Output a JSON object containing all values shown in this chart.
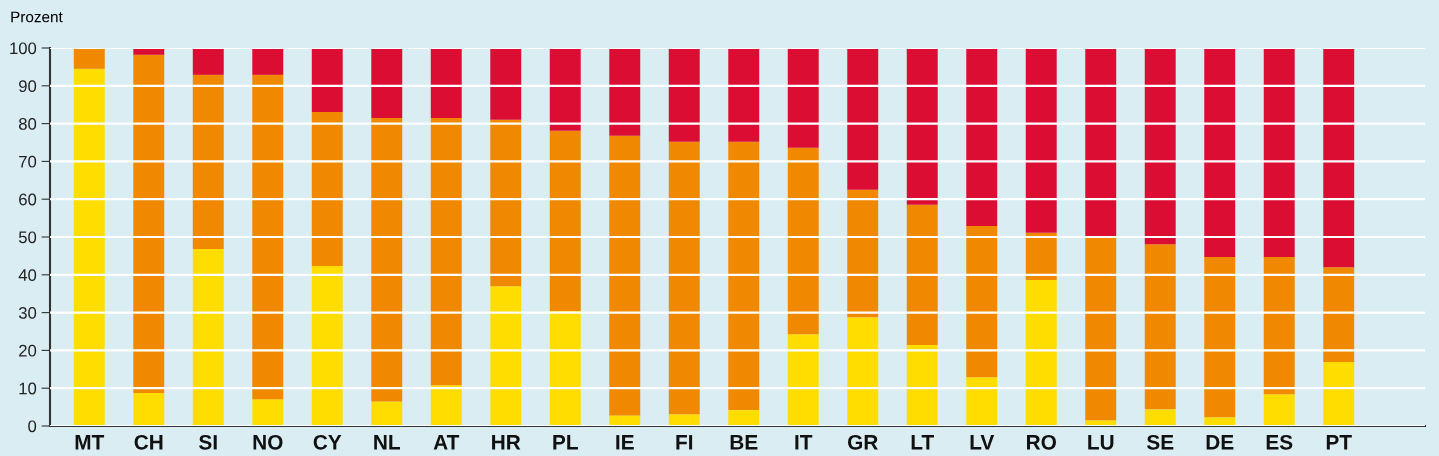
{
  "chart_data": {
    "type": "bar",
    "stacked": true,
    "ylabel": "Prozent",
    "categories": [
      "MT",
      "CH",
      "SI",
      "NO",
      "CY",
      "NL",
      "AT",
      "HR",
      "PL",
      "IE",
      "FI",
      "BE",
      "IT",
      "GR",
      "LT",
      "LV",
      "RO",
      "LU",
      "SE",
      "DE",
      "ES",
      "PT"
    ],
    "series": [
      {
        "color": "#ffdd00",
        "values": [
          94.5,
          8.7,
          46.8,
          7.1,
          42.3,
          6.5,
          10.8,
          37.0,
          30.4,
          2.8,
          3.1,
          4.2,
          24.3,
          28.8,
          21.4,
          12.9,
          38.6,
          1.5,
          4.4,
          2.3,
          8.4,
          16.9
        ]
      },
      {
        "color": "#f08800",
        "values": [
          5.5,
          89.5,
          46.1,
          85.8,
          40.8,
          75.0,
          70.7,
          44.0,
          47.7,
          74.0,
          72.1,
          71.0,
          49.3,
          33.7,
          37.1,
          40.0,
          12.5,
          48.5,
          43.7,
          42.4,
          36.3,
          25.1
        ]
      },
      {
        "color": "#dc0d32",
        "values": [
          0,
          1.8,
          7.1,
          7.1,
          16.9,
          18.5,
          18.5,
          19.0,
          21.9,
          23.2,
          24.8,
          24.8,
          26.4,
          37.5,
          41.5,
          47.1,
          48.9,
          50.0,
          51.9,
          55.3,
          55.3,
          58.0
        ]
      }
    ],
    "ylim": [
      0,
      100
    ],
    "yticks": [
      0,
      10,
      20,
      30,
      40,
      50,
      60,
      70,
      80,
      90,
      100
    ],
    "grid": "y",
    "legend": false
  }
}
